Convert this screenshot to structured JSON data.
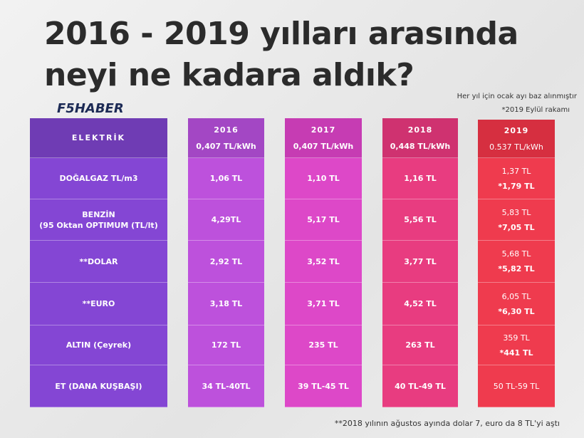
{
  "title_lines": [
    "2016 - 2019 yılları arasında",
    "neyi ne kadara aldık?"
  ],
  "notes": [
    "Her yıl için ocak ayı baz alınmıştır",
    "*2019 Eylül rakamı"
  ],
  "logo": "F5HABER",
  "table": {
    "years": [
      "2016",
      "2017",
      "2018",
      "2019"
    ],
    "rows": [
      {
        "label": [
          "ELEKTRİK"
        ],
        "cells": [
          [
            "0,407 TL/kWh"
          ],
          [
            "0,407 TL/kWh"
          ],
          [
            "0,448 TL/kWh"
          ],
          [
            "0.537  TL/kWh"
          ]
        ]
      },
      {
        "label": [
          "DOĞALGAZ TL/m3"
        ],
        "cells": [
          [
            "1,06 TL"
          ],
          [
            "1,10 TL"
          ],
          [
            "1,16 TL"
          ],
          [
            "1,37 TL",
            "*1,79 TL"
          ]
        ]
      },
      {
        "label": [
          "BENZİN",
          "(95 Oktan OPTIMUM (TL/lt)"
        ],
        "cells": [
          [
            "4,29TL"
          ],
          [
            "5,17 TL"
          ],
          [
            "5,56 TL"
          ],
          [
            "5,83 TL",
            "*7,05 TL"
          ]
        ]
      },
      {
        "label": [
          "**DOLAR"
        ],
        "cells": [
          [
            "2,92 TL"
          ],
          [
            "3,52 TL"
          ],
          [
            "3,77 TL"
          ],
          [
            "5,68 TL",
            "*5,82 TL"
          ]
        ]
      },
      {
        "label": [
          "**EURO"
        ],
        "cells": [
          [
            "3,18 TL"
          ],
          [
            "3,71 TL"
          ],
          [
            "4,52 TL"
          ],
          [
            "6,05 TL",
            "*6,30 TL"
          ]
        ]
      },
      {
        "label": [
          "ALTIN (Çeyrek)"
        ],
        "cells": [
          [
            "172 TL"
          ],
          [
            "235 TL"
          ],
          [
            "263 TL"
          ],
          [
            "359 TL",
            "*441 TL"
          ]
        ]
      },
      {
        "label": [
          "ET (DANA KUŞBAŞI)"
        ],
        "cells": [
          [
            "34 TL-40TL"
          ],
          [
            "39 TL-45 TL"
          ],
          [
            "40 TL-49 TL"
          ],
          [
            "50 TL-59 TL"
          ]
        ]
      }
    ]
  },
  "footnote": "**2018 yılının ağustos ayında  dolar 7, euro da 8 TL'yi aştı"
}
